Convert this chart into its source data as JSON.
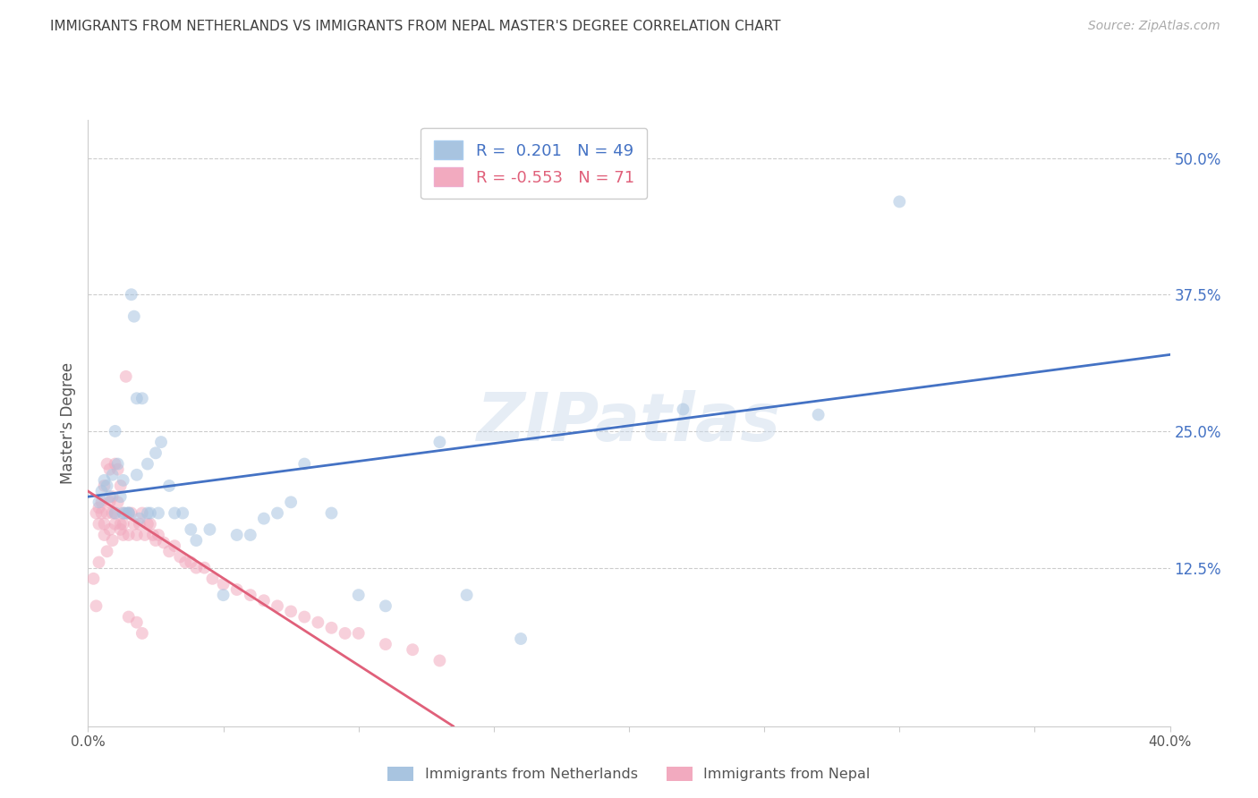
{
  "title": "IMMIGRANTS FROM NETHERLANDS VS IMMIGRANTS FROM NEPAL MASTER'S DEGREE CORRELATION CHART",
  "source": "Source: ZipAtlas.com",
  "ylabel": "Master's Degree",
  "y_ticks_right": [
    0.0,
    0.125,
    0.25,
    0.375,
    0.5
  ],
  "y_tick_labels_right": [
    "",
    "12.5%",
    "25.0%",
    "37.5%",
    "50.0%"
  ],
  "xlim": [
    0.0,
    0.4
  ],
  "ylim": [
    -0.02,
    0.535
  ],
  "watermark": "ZIPatlas",
  "legend_r1": "R =  0.201   N = 49",
  "legend_r2": "R = -0.553   N = 71",
  "netherlands_color": "#a8c4e0",
  "nepal_color": "#f2aabf",
  "netherlands_line_color": "#4472c4",
  "nepal_line_color": "#e0607a",
  "background_color": "#ffffff",
  "grid_color": "#cccccc",
  "title_color": "#404040",
  "right_axis_color": "#4472c4",
  "scatter_size": 100,
  "scatter_alpha": 0.55,
  "nl_line_x0": 0.0,
  "nl_line_y0": 0.19,
  "nl_line_x1": 0.4,
  "nl_line_y1": 0.32,
  "np_line_x0": 0.0,
  "np_line_y0": 0.195,
  "np_line_x1": 0.135,
  "np_line_y1": -0.02,
  "netherlands_points_x": [
    0.004,
    0.005,
    0.006,
    0.007,
    0.008,
    0.009,
    0.01,
    0.01,
    0.011,
    0.012,
    0.013,
    0.013,
    0.014,
    0.015,
    0.016,
    0.017,
    0.018,
    0.019,
    0.02,
    0.022,
    0.023,
    0.025,
    0.026,
    0.027,
    0.03,
    0.032,
    0.035,
    0.038,
    0.04,
    0.045,
    0.05,
    0.055,
    0.06,
    0.065,
    0.07,
    0.075,
    0.08,
    0.09,
    0.1,
    0.11,
    0.13,
    0.14,
    0.16,
    0.22,
    0.27,
    0.3,
    0.015,
    0.018,
    0.022
  ],
  "netherlands_points_y": [
    0.185,
    0.195,
    0.205,
    0.2,
    0.19,
    0.21,
    0.175,
    0.25,
    0.22,
    0.19,
    0.205,
    0.175,
    0.175,
    0.175,
    0.375,
    0.355,
    0.21,
    0.17,
    0.28,
    0.22,
    0.175,
    0.23,
    0.175,
    0.24,
    0.2,
    0.175,
    0.175,
    0.16,
    0.15,
    0.16,
    0.1,
    0.155,
    0.155,
    0.17,
    0.175,
    0.185,
    0.22,
    0.175,
    0.1,
    0.09,
    0.24,
    0.1,
    0.06,
    0.27,
    0.265,
    0.46,
    0.175,
    0.28,
    0.175
  ],
  "nepal_points_x": [
    0.002,
    0.003,
    0.003,
    0.004,
    0.004,
    0.005,
    0.005,
    0.006,
    0.006,
    0.007,
    0.007,
    0.008,
    0.008,
    0.009,
    0.009,
    0.01,
    0.01,
    0.011,
    0.011,
    0.012,
    0.012,
    0.013,
    0.013,
    0.014,
    0.015,
    0.015,
    0.016,
    0.017,
    0.018,
    0.019,
    0.02,
    0.021,
    0.022,
    0.023,
    0.024,
    0.025,
    0.026,
    0.028,
    0.03,
    0.032,
    0.034,
    0.036,
    0.038,
    0.04,
    0.043,
    0.046,
    0.05,
    0.055,
    0.06,
    0.065,
    0.07,
    0.075,
    0.08,
    0.085,
    0.09,
    0.095,
    0.1,
    0.11,
    0.12,
    0.13,
    0.004,
    0.006,
    0.007,
    0.008,
    0.009,
    0.01,
    0.012,
    0.013,
    0.015,
    0.018,
    0.02
  ],
  "nepal_points_y": [
    0.115,
    0.09,
    0.175,
    0.18,
    0.165,
    0.185,
    0.175,
    0.2,
    0.165,
    0.22,
    0.175,
    0.215,
    0.185,
    0.19,
    0.175,
    0.22,
    0.165,
    0.215,
    0.185,
    0.2,
    0.165,
    0.175,
    0.155,
    0.3,
    0.175,
    0.155,
    0.175,
    0.165,
    0.155,
    0.165,
    0.175,
    0.155,
    0.165,
    0.165,
    0.155,
    0.15,
    0.155,
    0.148,
    0.14,
    0.145,
    0.135,
    0.13,
    0.13,
    0.125,
    0.125,
    0.115,
    0.11,
    0.105,
    0.1,
    0.095,
    0.09,
    0.085,
    0.08,
    0.075,
    0.07,
    0.065,
    0.065,
    0.055,
    0.05,
    0.04,
    0.13,
    0.155,
    0.14,
    0.16,
    0.15,
    0.175,
    0.16,
    0.165,
    0.08,
    0.075,
    0.065
  ]
}
